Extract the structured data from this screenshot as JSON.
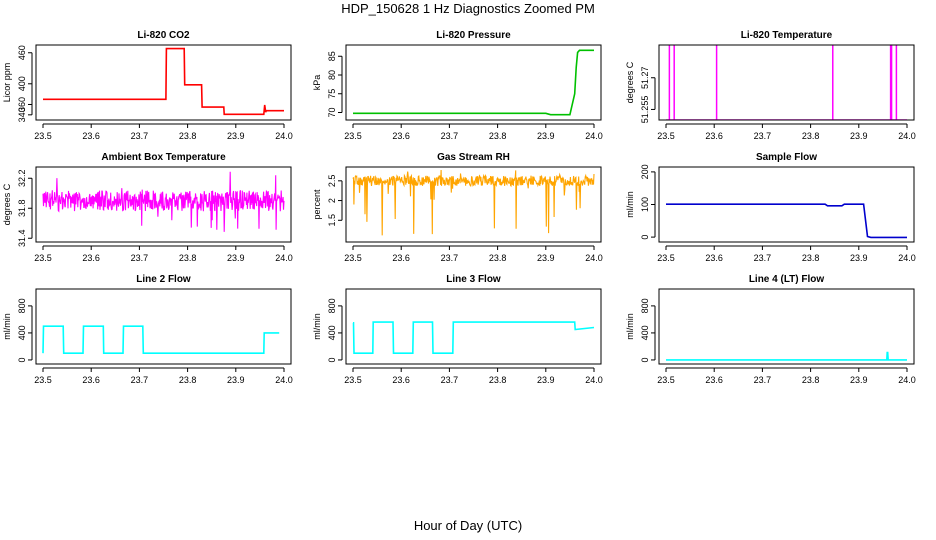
{
  "page": {
    "title": "HDP_150628  1 Hz Diagnostics Zoomed PM",
    "xlabel": "Hour of Day (UTC)"
  },
  "chart_data": [
    {
      "id": "co2",
      "type": "line",
      "title": "Li-820 CO2",
      "ylabel": "Licor ppm",
      "color": "#ff0000",
      "xlim": [
        23.5,
        24.0
      ],
      "x_ticks": [
        23.5,
        23.6,
        23.7,
        23.8,
        23.9,
        24.0
      ],
      "ylim": [
        330,
        475
      ],
      "y_ticks": [
        340,
        360,
        400,
        460
      ],
      "series": [
        {
          "x": [
            23.5,
            23.755,
            23.756,
            23.793,
            23.794,
            23.829,
            23.83,
            23.875,
            23.876,
            23.958,
            23.96,
            23.962,
            23.963,
            24.0
          ],
          "y": [
            370,
            370,
            468,
            468,
            398,
            398,
            355,
            355,
            341,
            341,
            359,
            345,
            348,
            348
          ]
        }
      ]
    },
    {
      "id": "pressure",
      "type": "line",
      "title": "Li-820 Pressure",
      "ylabel": "kPa",
      "color": "#00c000",
      "xlim": [
        23.5,
        24.0
      ],
      "x_ticks": [
        23.5,
        23.6,
        23.7,
        23.8,
        23.9,
        24.0
      ],
      "ylim": [
        68,
        88
      ],
      "y_ticks": [
        70,
        75,
        80,
        85
      ],
      "series": [
        {
          "x": [
            23.5,
            23.9,
            23.91,
            23.95,
            23.96,
            23.963,
            23.966,
            23.97,
            24.0
          ],
          "y": [
            69.8,
            69.8,
            69.4,
            69.4,
            75,
            82,
            86,
            86.6,
            86.6
          ]
        }
      ]
    },
    {
      "id": "temperature",
      "type": "line",
      "title": "Li-820 Temperature",
      "ylabel": "degrees C",
      "color": "#ff00ff",
      "xlim": [
        23.5,
        24.0
      ],
      "x_ticks": [
        23.5,
        23.6,
        23.7,
        23.8,
        23.9,
        24.0
      ],
      "ylim": [
        51.25,
        51.2855
      ],
      "y_ticks": [
        51.255,
        51.27
      ],
      "baseline": 51.25,
      "spike_top": 51.2855,
      "spikes": [
        23.507,
        23.517,
        23.605,
        23.846,
        23.966,
        23.968,
        23.978
      ]
    },
    {
      "id": "ambient",
      "type": "line",
      "title": "Ambient Box Temperature",
      "ylabel": "degrees C",
      "color": "#ff00ff",
      "xlim": [
        23.5,
        24.0
      ],
      "x_ticks": [
        23.5,
        23.6,
        23.7,
        23.8,
        23.9,
        24.0
      ],
      "ylim": [
        31.35,
        32.35
      ],
      "y_ticks": [
        31.4,
        31.8,
        32.2
      ],
      "noise": {
        "center": 31.9,
        "band": 0.14,
        "tail_low": 31.45,
        "tail_high": 32.3
      }
    },
    {
      "id": "rh",
      "type": "line",
      "title": "Gas Stream RH",
      "ylabel": "percent",
      "color": "#ffa500",
      "xlim": [
        23.5,
        24.0
      ],
      "x_ticks": [
        23.5,
        23.6,
        23.7,
        23.8,
        23.9,
        24.0
      ],
      "ylim": [
        0.95,
        2.85
      ],
      "y_ticks": [
        1.5,
        2.0,
        2.5
      ],
      "noise": {
        "center": 2.5,
        "band": 0.13,
        "tail_low": 1.0,
        "tail_high": 2.78
      }
    },
    {
      "id": "sample",
      "type": "line",
      "title": "Sample Flow",
      "ylabel": "ml/min",
      "color": "#0000cd",
      "xlim": [
        23.5,
        24.0
      ],
      "x_ticks": [
        23.5,
        23.6,
        23.7,
        23.8,
        23.9,
        24.0
      ],
      "ylim": [
        -15,
        215
      ],
      "y_ticks": [
        0,
        100,
        200
      ],
      "series": [
        {
          "x": [
            23.5,
            23.83,
            23.835,
            23.865,
            23.87,
            23.91,
            23.918,
            23.925,
            24.0
          ],
          "y": [
            101,
            101,
            96,
            96,
            101,
            101,
            2,
            -1,
            -1
          ]
        }
      ]
    },
    {
      "id": "line2",
      "type": "line",
      "title": "Line 2 Flow",
      "ylabel": "ml/min",
      "color": "#00ffff",
      "xlim": [
        23.5,
        24.0
      ],
      "x_ticks": [
        23.5,
        23.6,
        23.7,
        23.8,
        23.9,
        24.0
      ],
      "ylim": [
        -60,
        1050
      ],
      "y_ticks": [
        0,
        400,
        800
      ],
      "series": [
        {
          "x": [
            23.5,
            23.501,
            23.542,
            23.543,
            23.583,
            23.584,
            23.625,
            23.626,
            23.666,
            23.667,
            23.707,
            23.708,
            23.958,
            23.959,
            23.99
          ],
          "y": [
            100,
            500,
            500,
            100,
            100,
            500,
            500,
            100,
            100,
            500,
            500,
            100,
            100,
            400,
            400
          ]
        }
      ]
    },
    {
      "id": "line3",
      "type": "line",
      "title": "Line 3 Flow",
      "ylabel": "ml/min",
      "color": "#00ffff",
      "xlim": [
        23.5,
        24.0
      ],
      "x_ticks": [
        23.5,
        23.6,
        23.7,
        23.8,
        23.9,
        24.0
      ],
      "ylim": [
        -60,
        1050
      ],
      "y_ticks": [
        0,
        400,
        800
      ],
      "series": [
        {
          "x": [
            23.5,
            23.501,
            23.502,
            23.541,
            23.542,
            23.583,
            23.584,
            23.624,
            23.625,
            23.665,
            23.666,
            23.707,
            23.708,
            23.96,
            23.961,
            24.0
          ],
          "y": [
            550,
            550,
            100,
            100,
            560,
            560,
            100,
            100,
            560,
            560,
            100,
            100,
            560,
            560,
            450,
            480
          ]
        }
      ]
    },
    {
      "id": "line4",
      "type": "line",
      "title": "Line 4 (LT) Flow",
      "ylabel": "ml/min",
      "color": "#00ffff",
      "xlim": [
        23.5,
        24.0
      ],
      "x_ticks": [
        23.5,
        23.6,
        23.7,
        23.8,
        23.9,
        24.0
      ],
      "ylim": [
        -60,
        1050
      ],
      "y_ticks": [
        0,
        400,
        800
      ],
      "series": [
        {
          "x": [
            23.5,
            23.958,
            23.959,
            23.96,
            23.961,
            24.0
          ],
          "y": [
            0,
            0,
            110,
            110,
            0,
            0
          ]
        }
      ]
    }
  ]
}
